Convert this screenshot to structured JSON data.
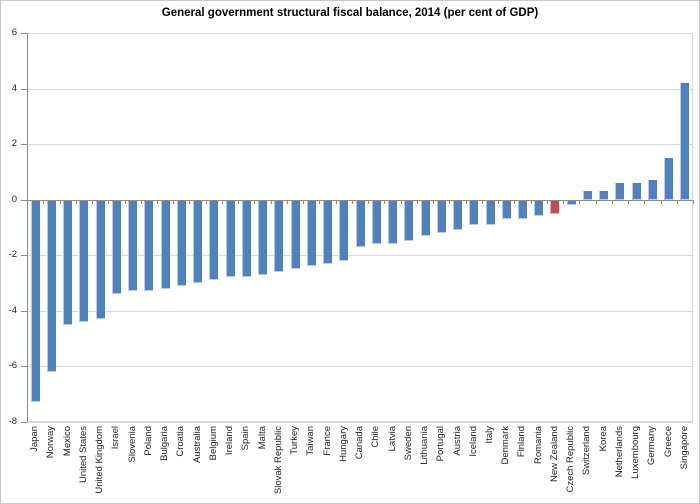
{
  "chart": {
    "title": "General government structural fiscal balance, 2014 (per cent of GDP)"
  },
  "colors": {
    "bar_default": "#4F81BD",
    "bar_default_edge": "#B8CCE4",
    "bar_highlight": "#C0504D",
    "bar_highlight_edge": "#E0B3B2",
    "gridline": "#D9D9D9",
    "axis": "#8C8C8C",
    "label_text": "#1F1F1F",
    "background": "#FFFFFF"
  },
  "chart_data": {
    "type": "bar",
    "title": "General government structural fiscal balance, 2014 (per cent of GDP)",
    "xlabel": "",
    "ylabel": "",
    "ylim": [
      -8,
      6
    ],
    "yticks": [
      6,
      4,
      2,
      0,
      -2,
      -4,
      -6,
      -8
    ],
    "grid": true,
    "legend": "none",
    "bar_orientation": "vertical",
    "categories": [
      "Japan",
      "Norway",
      "Mexico",
      "United States",
      "United Kingdom",
      "Israel",
      "Slovenia",
      "Poland",
      "Bulgaria",
      "Croatia",
      "Australia",
      "Belgium",
      "Ireland",
      "Spain",
      "Malta",
      "Slovak Republic",
      "Turkey",
      "Taiwan",
      "France",
      "Hungary",
      "Canada",
      "Chile",
      "Latvia",
      "Sweden",
      "Lithuania",
      "Portugal",
      "Austria",
      "Iceland",
      "Italy",
      "Denmark",
      "Finland",
      "Romania",
      "New Zealand",
      "Czech Republic",
      "Switzerland",
      "Korea",
      "Netherlands",
      "Luxembourg",
      "Germany",
      "Greece",
      "Singapore"
    ],
    "values": [
      -7.3,
      -6.2,
      -4.5,
      -4.4,
      -4.3,
      -3.4,
      -3.3,
      -3.3,
      -3.2,
      -3.1,
      -3.0,
      -2.9,
      -2.8,
      -2.8,
      -2.7,
      -2.6,
      -2.5,
      -2.4,
      -2.3,
      -2.2,
      -1.7,
      -1.6,
      -1.6,
      -1.5,
      -1.3,
      -1.2,
      -1.1,
      -0.9,
      -0.9,
      -0.7,
      -0.7,
      -0.6,
      -0.5,
      -0.2,
      0.3,
      0.3,
      0.6,
      0.6,
      0.7,
      1.5,
      4.2
    ],
    "highlight": {
      "category": "New Zealand",
      "index": 32,
      "color": "#C0504D"
    }
  }
}
